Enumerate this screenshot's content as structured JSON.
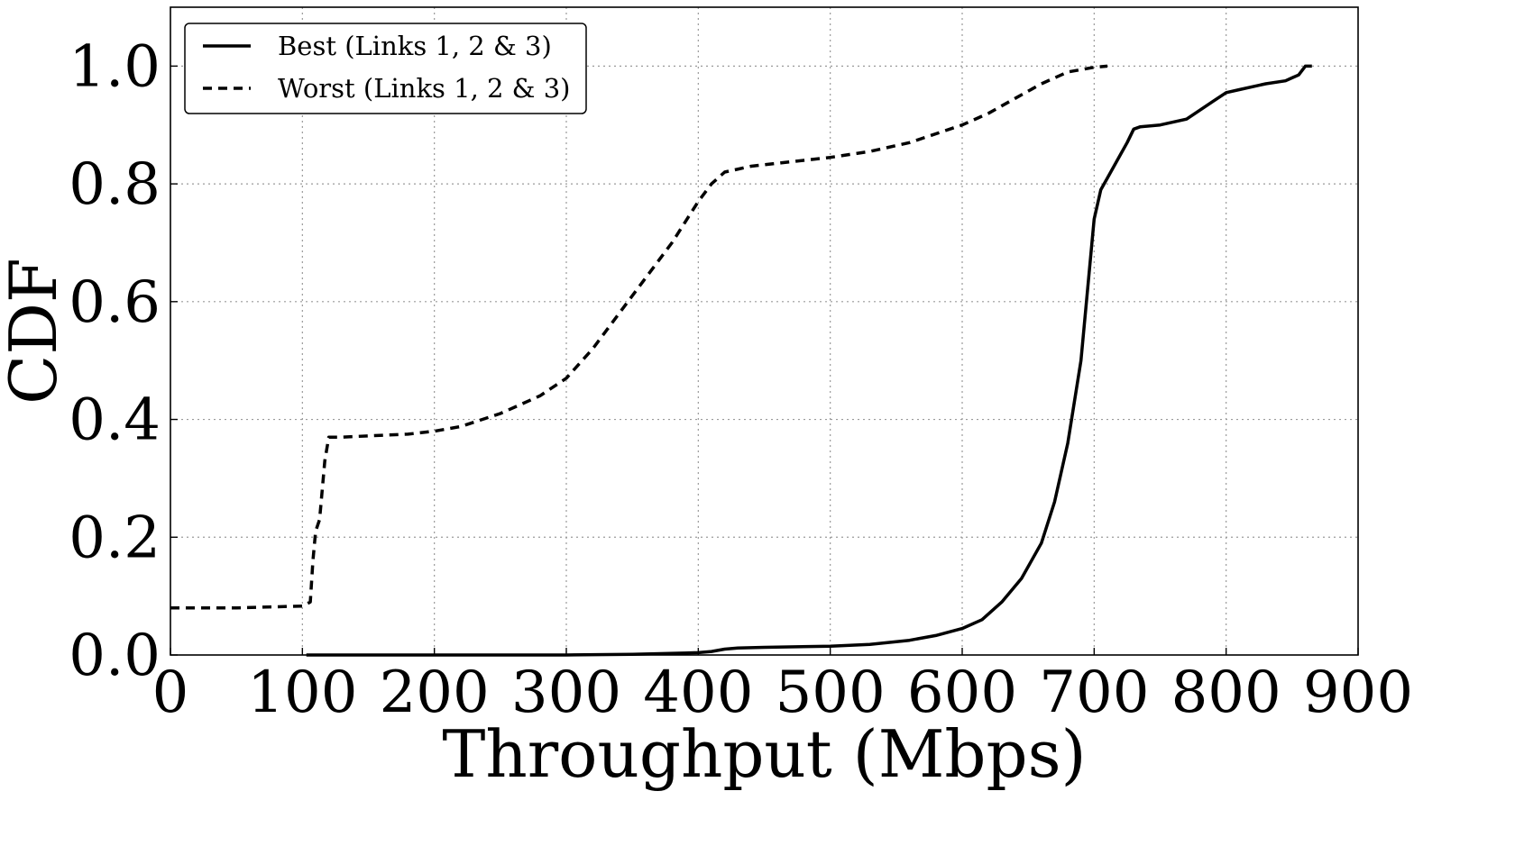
{
  "chart_data": {
    "type": "line",
    "xlabel": "Throughput (Mbps)",
    "ylabel": "CDF",
    "xlim": [
      0,
      900
    ],
    "ylim": [
      0,
      1.1
    ],
    "x_ticks": [
      "0",
      "100",
      "200",
      "300",
      "400",
      "500",
      "600",
      "700",
      "800",
      "900"
    ],
    "y_ticks": [
      "0.0",
      "0.2",
      "0.4",
      "0.6",
      "0.8",
      "1.0"
    ],
    "x_tick_values": [
      0,
      100,
      200,
      300,
      400,
      500,
      600,
      700,
      800,
      900
    ],
    "y_tick_values": [
      0,
      0.2,
      0.4,
      0.6,
      0.8,
      1.0
    ],
    "grid": true,
    "legend_position": "top-left",
    "series": [
      {
        "name": "Best (Links 1, 2 & 3)",
        "style": "solid",
        "color": "#000000",
        "x": [
          103,
          200,
          300,
          350,
          400,
          410,
          420,
          430,
          450,
          500,
          530,
          560,
          580,
          600,
          615,
          630,
          645,
          660,
          670,
          680,
          690,
          695,
          700,
          705,
          710,
          720,
          725,
          730,
          735,
          750,
          770,
          790,
          800,
          810,
          830,
          845,
          850,
          855,
          860,
          865
        ],
        "y": [
          0.0,
          0.0,
          0.0,
          0.001,
          0.004,
          0.006,
          0.01,
          0.012,
          0.013,
          0.015,
          0.018,
          0.025,
          0.033,
          0.045,
          0.06,
          0.09,
          0.13,
          0.19,
          0.26,
          0.36,
          0.5,
          0.62,
          0.74,
          0.79,
          0.81,
          0.85,
          0.87,
          0.893,
          0.897,
          0.9,
          0.91,
          0.94,
          0.955,
          0.96,
          0.97,
          0.975,
          0.98,
          0.985,
          1.0,
          1.0
        ]
      },
      {
        "name": "Worst (Links 1, 2 & 3)",
        "style": "dashed",
        "color": "#000000",
        "x": [
          0,
          50,
          100,
          106,
          108,
          110,
          113,
          117,
          120,
          130,
          150,
          180,
          200,
          220,
          250,
          280,
          300,
          320,
          340,
          360,
          380,
          400,
          410,
          420,
          440,
          460,
          500,
          530,
          560,
          600,
          620,
          640,
          660,
          680,
          700,
          710
        ],
        "y": [
          0.08,
          0.08,
          0.083,
          0.09,
          0.16,
          0.21,
          0.23,
          0.33,
          0.37,
          0.37,
          0.372,
          0.375,
          0.38,
          0.388,
          0.41,
          0.44,
          0.47,
          0.52,
          0.58,
          0.64,
          0.7,
          0.77,
          0.8,
          0.82,
          0.83,
          0.835,
          0.845,
          0.855,
          0.87,
          0.9,
          0.92,
          0.945,
          0.97,
          0.99,
          0.998,
          1.0
        ]
      }
    ]
  }
}
